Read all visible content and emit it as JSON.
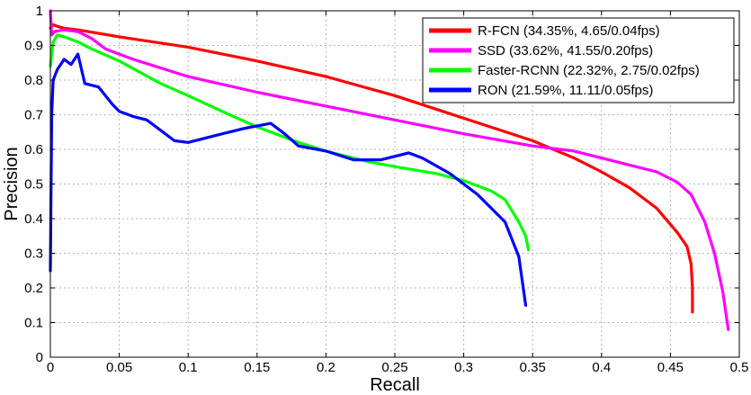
{
  "chart_data": {
    "type": "line",
    "title": "",
    "xlabel": "Recall",
    "ylabel": "Precision",
    "xlim": [
      0,
      0.5
    ],
    "ylim": [
      0,
      1
    ],
    "x_ticks": [
      "0",
      "0.05",
      "0.1",
      "0.15",
      "0.2",
      "0.25",
      "0.3",
      "0.35",
      "0.4",
      "0.45",
      "0.5"
    ],
    "y_ticks": [
      "0",
      "0.1",
      "0.2",
      "0.3",
      "0.4",
      "0.5",
      "0.6",
      "0.7",
      "0.8",
      "0.9",
      "1"
    ],
    "grid": true,
    "legend_position": "top-right",
    "series": [
      {
        "name": "R-FCN (34.35%, 4.65/0.04fps)",
        "color": "#ff0000",
        "points": [
          [
            0.0,
            0.95
          ],
          [
            0.002,
            0.96
          ],
          [
            0.005,
            0.955
          ],
          [
            0.01,
            0.95
          ],
          [
            0.02,
            0.945
          ],
          [
            0.05,
            0.925
          ],
          [
            0.1,
            0.895
          ],
          [
            0.15,
            0.855
          ],
          [
            0.2,
            0.81
          ],
          [
            0.25,
            0.755
          ],
          [
            0.3,
            0.69
          ],
          [
            0.35,
            0.625
          ],
          [
            0.38,
            0.575
          ],
          [
            0.4,
            0.535
          ],
          [
            0.42,
            0.49
          ],
          [
            0.44,
            0.43
          ],
          [
            0.455,
            0.36
          ],
          [
            0.462,
            0.32
          ],
          [
            0.465,
            0.27
          ],
          [
            0.466,
            0.2
          ],
          [
            0.466,
            0.13
          ]
        ]
      },
      {
        "name": "SSD (33.62%, 41.55/0.20fps)",
        "color": "#ff00ff",
        "points": [
          [
            0.0,
            1.0
          ],
          [
            0.001,
            0.93
          ],
          [
            0.003,
            0.94
          ],
          [
            0.01,
            0.945
          ],
          [
            0.02,
            0.94
          ],
          [
            0.03,
            0.92
          ],
          [
            0.04,
            0.89
          ],
          [
            0.06,
            0.86
          ],
          [
            0.08,
            0.835
          ],
          [
            0.1,
            0.81
          ],
          [
            0.15,
            0.765
          ],
          [
            0.2,
            0.725
          ],
          [
            0.25,
            0.685
          ],
          [
            0.3,
            0.645
          ],
          [
            0.35,
            0.61
          ],
          [
            0.38,
            0.595
          ],
          [
            0.4,
            0.575
          ],
          [
            0.42,
            0.555
          ],
          [
            0.44,
            0.535
          ],
          [
            0.455,
            0.505
          ],
          [
            0.465,
            0.47
          ],
          [
            0.475,
            0.39
          ],
          [
            0.482,
            0.3
          ],
          [
            0.488,
            0.19
          ],
          [
            0.492,
            0.08
          ]
        ]
      },
      {
        "name": "Faster-RCNN (22.32%, 2.75/0.02fps)",
        "color": "#00ff00",
        "points": [
          [
            0.0,
            0.84
          ],
          [
            0.002,
            0.91
          ],
          [
            0.005,
            0.93
          ],
          [
            0.01,
            0.925
          ],
          [
            0.02,
            0.91
          ],
          [
            0.03,
            0.89
          ],
          [
            0.05,
            0.855
          ],
          [
            0.08,
            0.79
          ],
          [
            0.1,
            0.755
          ],
          [
            0.13,
            0.7
          ],
          [
            0.15,
            0.665
          ],
          [
            0.18,
            0.62
          ],
          [
            0.2,
            0.595
          ],
          [
            0.23,
            0.565
          ],
          [
            0.25,
            0.55
          ],
          [
            0.28,
            0.53
          ],
          [
            0.3,
            0.51
          ],
          [
            0.32,
            0.48
          ],
          [
            0.33,
            0.455
          ],
          [
            0.34,
            0.39
          ],
          [
            0.345,
            0.35
          ],
          [
            0.347,
            0.31
          ]
        ]
      },
      {
        "name": "RON (21.59%, 11.11/0.05fps)",
        "color": "#0000ff",
        "points": [
          [
            0.0,
            0.25
          ],
          [
            0.001,
            0.7
          ],
          [
            0.002,
            0.8
          ],
          [
            0.005,
            0.83
          ],
          [
            0.01,
            0.86
          ],
          [
            0.015,
            0.845
          ],
          [
            0.02,
            0.875
          ],
          [
            0.025,
            0.79
          ],
          [
            0.035,
            0.78
          ],
          [
            0.045,
            0.73
          ],
          [
            0.05,
            0.71
          ],
          [
            0.06,
            0.695
          ],
          [
            0.07,
            0.685
          ],
          [
            0.08,
            0.655
          ],
          [
            0.09,
            0.625
          ],
          [
            0.1,
            0.62
          ],
          [
            0.12,
            0.64
          ],
          [
            0.14,
            0.66
          ],
          [
            0.16,
            0.675
          ],
          [
            0.17,
            0.645
          ],
          [
            0.18,
            0.61
          ],
          [
            0.2,
            0.595
          ],
          [
            0.22,
            0.57
          ],
          [
            0.24,
            0.57
          ],
          [
            0.26,
            0.59
          ],
          [
            0.27,
            0.575
          ],
          [
            0.29,
            0.53
          ],
          [
            0.31,
            0.47
          ],
          [
            0.33,
            0.39
          ],
          [
            0.34,
            0.29
          ],
          [
            0.345,
            0.15
          ]
        ]
      }
    ]
  }
}
